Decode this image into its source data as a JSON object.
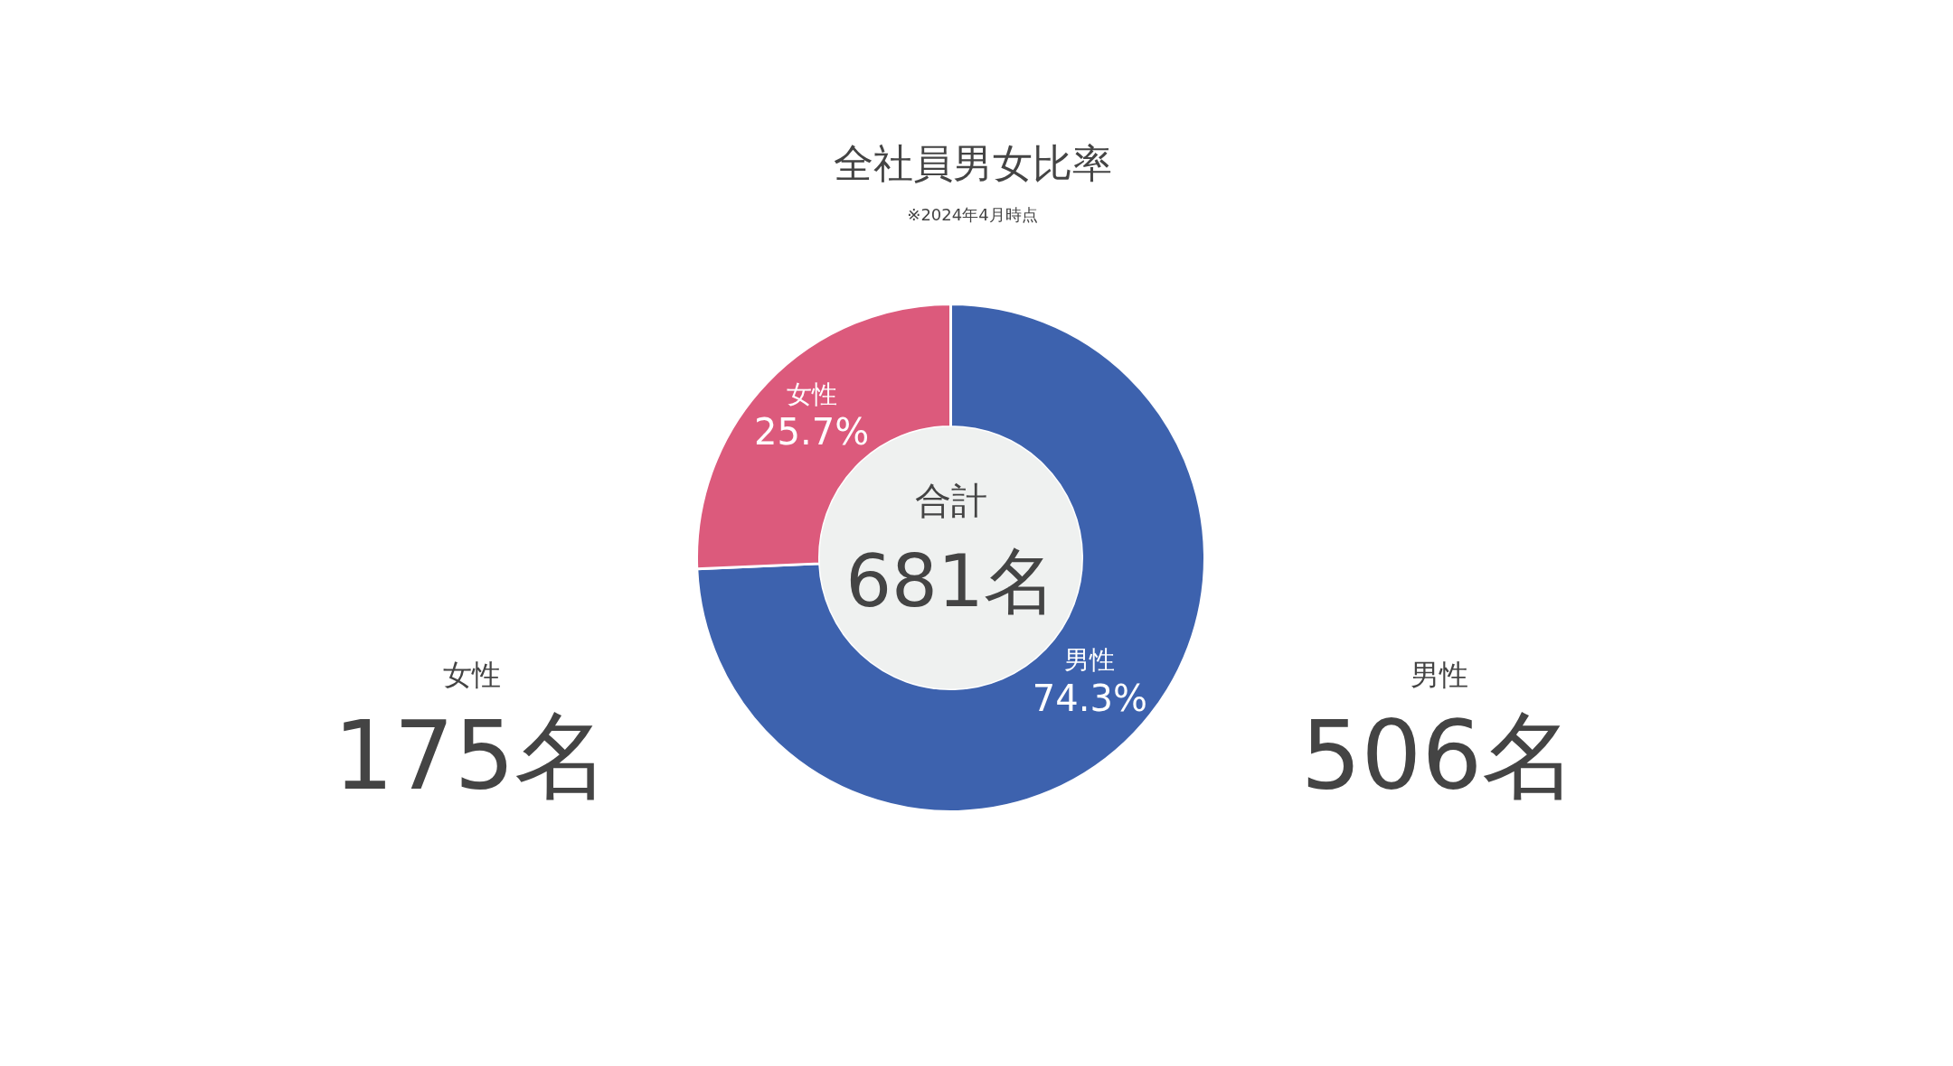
{
  "chart_data": {
    "type": "donut",
    "title": "全社員男女比率",
    "subtitle": "※2024年4月時点",
    "categories": [
      "男性",
      "女性"
    ],
    "values": [
      74.3,
      25.7
    ],
    "colors": [
      "#3d62ae",
      "#dc5a7c"
    ],
    "value_labels": [
      "74.3%",
      "25.7%"
    ],
    "annotations": [
      "女性",
      "175名",
      "合計",
      "681名",
      "男性",
      "506名"
    ]
  }
}
